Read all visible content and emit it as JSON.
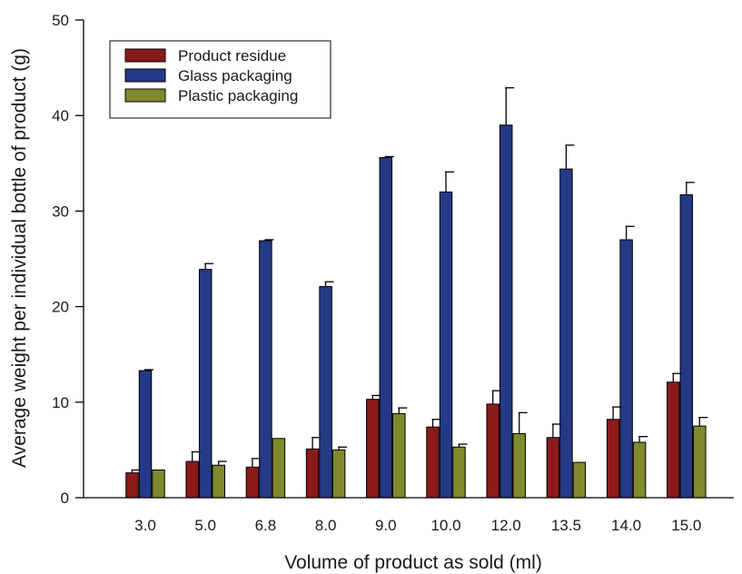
{
  "chart_data": {
    "type": "bar",
    "xlabel": "Volume of product as sold (ml)",
    "ylabel": "Average weight per individual bottle of product (g)",
    "ylim": [
      0,
      50
    ],
    "yticks": [
      0,
      10,
      20,
      30,
      40,
      50
    ],
    "categories": [
      "3.0",
      "5.0",
      "6.8",
      "8.0",
      "9.0",
      "10.0",
      "12.0",
      "13.5",
      "14.0",
      "15.0"
    ],
    "legend_position": "top-left",
    "grid": false,
    "series": [
      {
        "name": "Product residue",
        "color": "#8b1a1a",
        "values": [
          2.6,
          3.8,
          3.2,
          5.1,
          10.3,
          7.4,
          9.8,
          6.3,
          8.2,
          12.1
        ],
        "errors": [
          0.3,
          1.0,
          0.9,
          1.2,
          0.4,
          0.8,
          1.4,
          1.4,
          1.3,
          0.9
        ]
      },
      {
        "name": "Glass packaging",
        "color": "#243a86",
        "values": [
          13.3,
          23.9,
          26.9,
          22.1,
          35.6,
          32.0,
          39.0,
          34.4,
          27.0,
          31.7
        ],
        "errors": [
          0.1,
          0.6,
          0.1,
          0.5,
          0.1,
          2.1,
          3.9,
          2.5,
          1.4,
          1.3
        ]
      },
      {
        "name": "Plastic packaging",
        "color": "#7f8a2c",
        "values": [
          2.9,
          3.4,
          6.2,
          5.0,
          8.8,
          5.3,
          6.7,
          3.7,
          5.8,
          7.5
        ],
        "errors": [
          0.0,
          0.4,
          0.0,
          0.3,
          0.6,
          0.3,
          2.2,
          0.0,
          0.6,
          0.9
        ]
      }
    ]
  }
}
